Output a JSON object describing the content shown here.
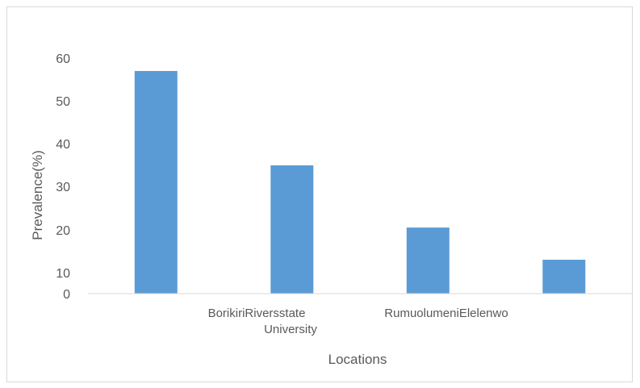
{
  "chart_data": {
    "type": "bar",
    "categories": [
      "",
      "BorikiriRiversstate University",
      "RumuolumeniElelenwo",
      ""
    ],
    "values": [
      57,
      35,
      20.5,
      13
    ],
    "xlabel": "Locations",
    "ylabel": "Prevalence(%)",
    "yticks": [
      "0",
      "10",
      "20",
      "30",
      "40",
      "50",
      "60"
    ],
    "ylim": [
      0,
      60
    ],
    "bar_color": "#5b9bd5",
    "grid": false,
    "legend": "none"
  }
}
